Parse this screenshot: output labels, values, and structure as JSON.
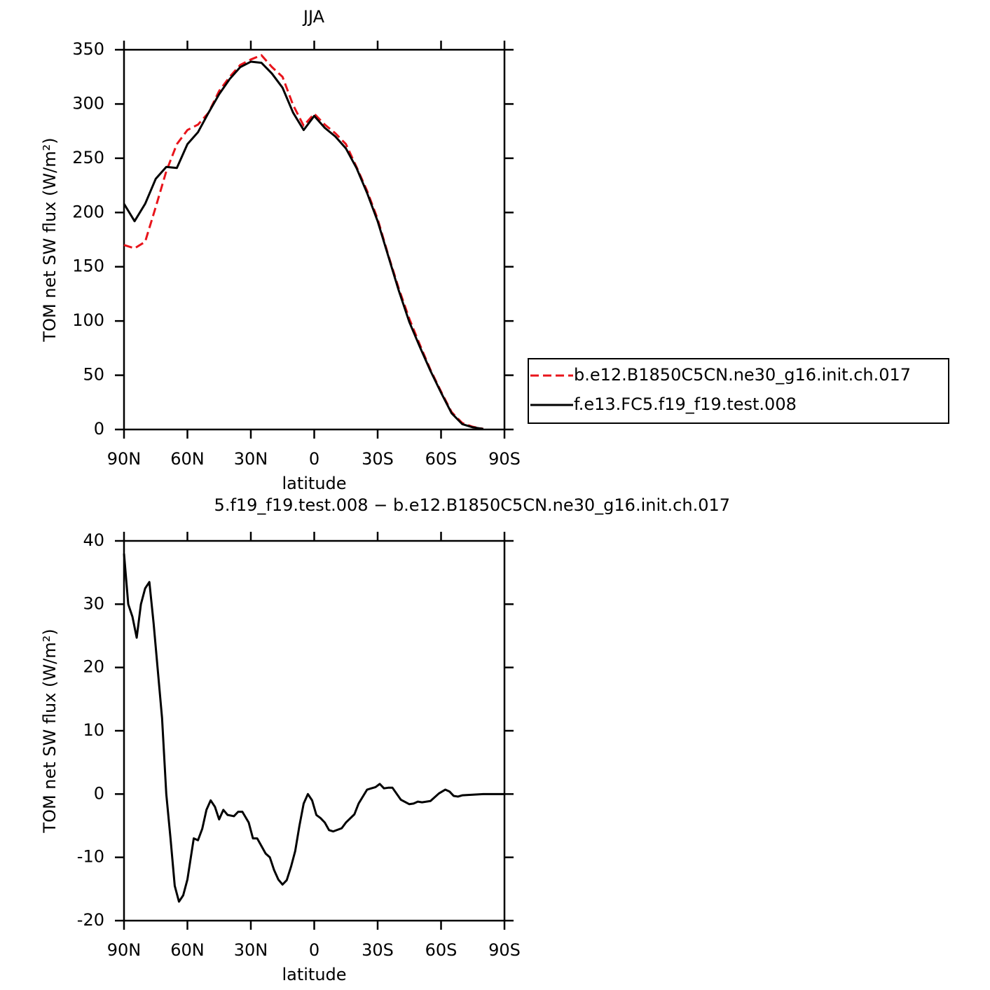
{
  "chart_data": [
    {
      "type": "line",
      "title": "JJA",
      "xlabel": "latitude",
      "ylabel": "TOM net SW flux (W/m²)",
      "x": [
        90,
        85,
        80,
        75,
        70,
        65,
        60,
        55,
        50,
        45,
        40,
        35,
        30,
        25,
        20,
        15,
        10,
        5,
        0,
        -5,
        -10,
        -15,
        -20,
        -25,
        -30,
        -35,
        -40,
        -45,
        -50,
        -55,
        -60,
        -65,
        -70,
        -75,
        -80
      ],
      "series": [
        {
          "name": "b.e12.B1850C5CN.ne30_g16.init.ch.017",
          "color": "#e8141b",
          "dashed": true,
          "values": [
            170,
            167,
            173,
            205,
            238,
            263,
            276,
            281,
            292,
            312,
            325,
            336,
            341,
            345,
            334,
            325,
            299,
            280,
            291,
            281,
            273,
            263,
            242,
            220,
            194,
            161,
            130,
            102,
            78,
            55,
            35,
            16,
            6,
            2.5,
            0.6
          ]
        },
        {
          "name": "f.e13.FC5.f19_f19.test.008",
          "color": "#000000",
          "dashed": false,
          "values": [
            208,
            192,
            208,
            231,
            242,
            241,
            263,
            274,
            292,
            309,
            323,
            334,
            339,
            338,
            328,
            315,
            292,
            276,
            289,
            278,
            270,
            259,
            241,
            218,
            192,
            160,
            128,
            99,
            76,
            54,
            34,
            15,
            5,
            2,
            0.5
          ]
        }
      ],
      "xlim": [
        90,
        -90
      ],
      "xticks": [
        {
          "value": 90,
          "label": "90N"
        },
        {
          "value": 60,
          "label": "60N"
        },
        {
          "value": 30,
          "label": "30N"
        },
        0,
        {
          "value": -30,
          "label": "30S"
        },
        {
          "value": -60,
          "label": "60S"
        },
        {
          "value": -90,
          "label": "90S"
        }
      ],
      "ylim": [
        0,
        350
      ],
      "yticks": [
        0,
        50,
        100,
        150,
        200,
        250,
        300,
        350
      ],
      "legend": "right"
    },
    {
      "type": "line",
      "title": "5.f19_f19.test.008 − b.e12.B1850C5CN.ne30_g16.init.ch.017",
      "xlabel": "latitude",
      "ylabel": "TOM net SW flux (W/m²)",
      "x": [
        90,
        88,
        86,
        84,
        82,
        80,
        78,
        76,
        72,
        70,
        68,
        66,
        64,
        62,
        60,
        57,
        55,
        53,
        51,
        49,
        47,
        45,
        43,
        41,
        38,
        36,
        34,
        31,
        29,
        27,
        25,
        23,
        21,
        19,
        17,
        15,
        13,
        11,
        9,
        7,
        5,
        3,
        1,
        -1,
        -3,
        -5,
        -7,
        -9,
        -13,
        -15,
        -19,
        -21,
        -25,
        -27,
        -29,
        -31,
        -33,
        -35,
        -37,
        -41,
        -45,
        -47,
        -49,
        -51,
        -55,
        -59,
        -62,
        -64,
        -66,
        -68,
        -70,
        -75,
        -80,
        -85,
        -90
      ],
      "values": [
        38,
        30,
        28,
        24.7,
        30,
        32.5,
        33.5,
        27,
        12,
        0,
        -7,
        -14.5,
        -17,
        -16,
        -13.5,
        -7,
        -7.3,
        -5.5,
        -2.5,
        -1,
        -2,
        -4,
        -2.5,
        -3.3,
        -3.5,
        -2.8,
        -2.8,
        -4.5,
        -7,
        -7,
        -8.2,
        -9.4,
        -10,
        -12,
        -13.5,
        -14.3,
        -13.6,
        -11.5,
        -9,
        -5,
        -1.5,
        0,
        -1,
        -3.3,
        -3.8,
        -4.5,
        -5.7,
        -5.9,
        -5.4,
        -4.5,
        -3.2,
        -1.5,
        0.7,
        0.9,
        1.1,
        1.6,
        0.9,
        1.0,
        1.0,
        -0.9,
        -1.6,
        -1.5,
        -1.2,
        -1.3,
        -1.1,
        0.1,
        0.7,
        0.4,
        -0.3,
        -0.4,
        -0.2,
        -0.1,
        0,
        0,
        0
      ],
      "color": "#000000",
      "xlim": [
        90,
        -90
      ],
      "xticks": [
        {
          "value": 90,
          "label": "90N"
        },
        {
          "value": 60,
          "label": "60N"
        },
        {
          "value": 30,
          "label": "30N"
        },
        0,
        {
          "value": -30,
          "label": "30S"
        },
        {
          "value": -60,
          "label": "60S"
        },
        {
          "value": -90,
          "label": "90S"
        }
      ],
      "ylim": [
        -20,
        40
      ],
      "yticks": [
        -20,
        -10,
        0,
        10,
        20,
        30,
        40
      ]
    }
  ]
}
